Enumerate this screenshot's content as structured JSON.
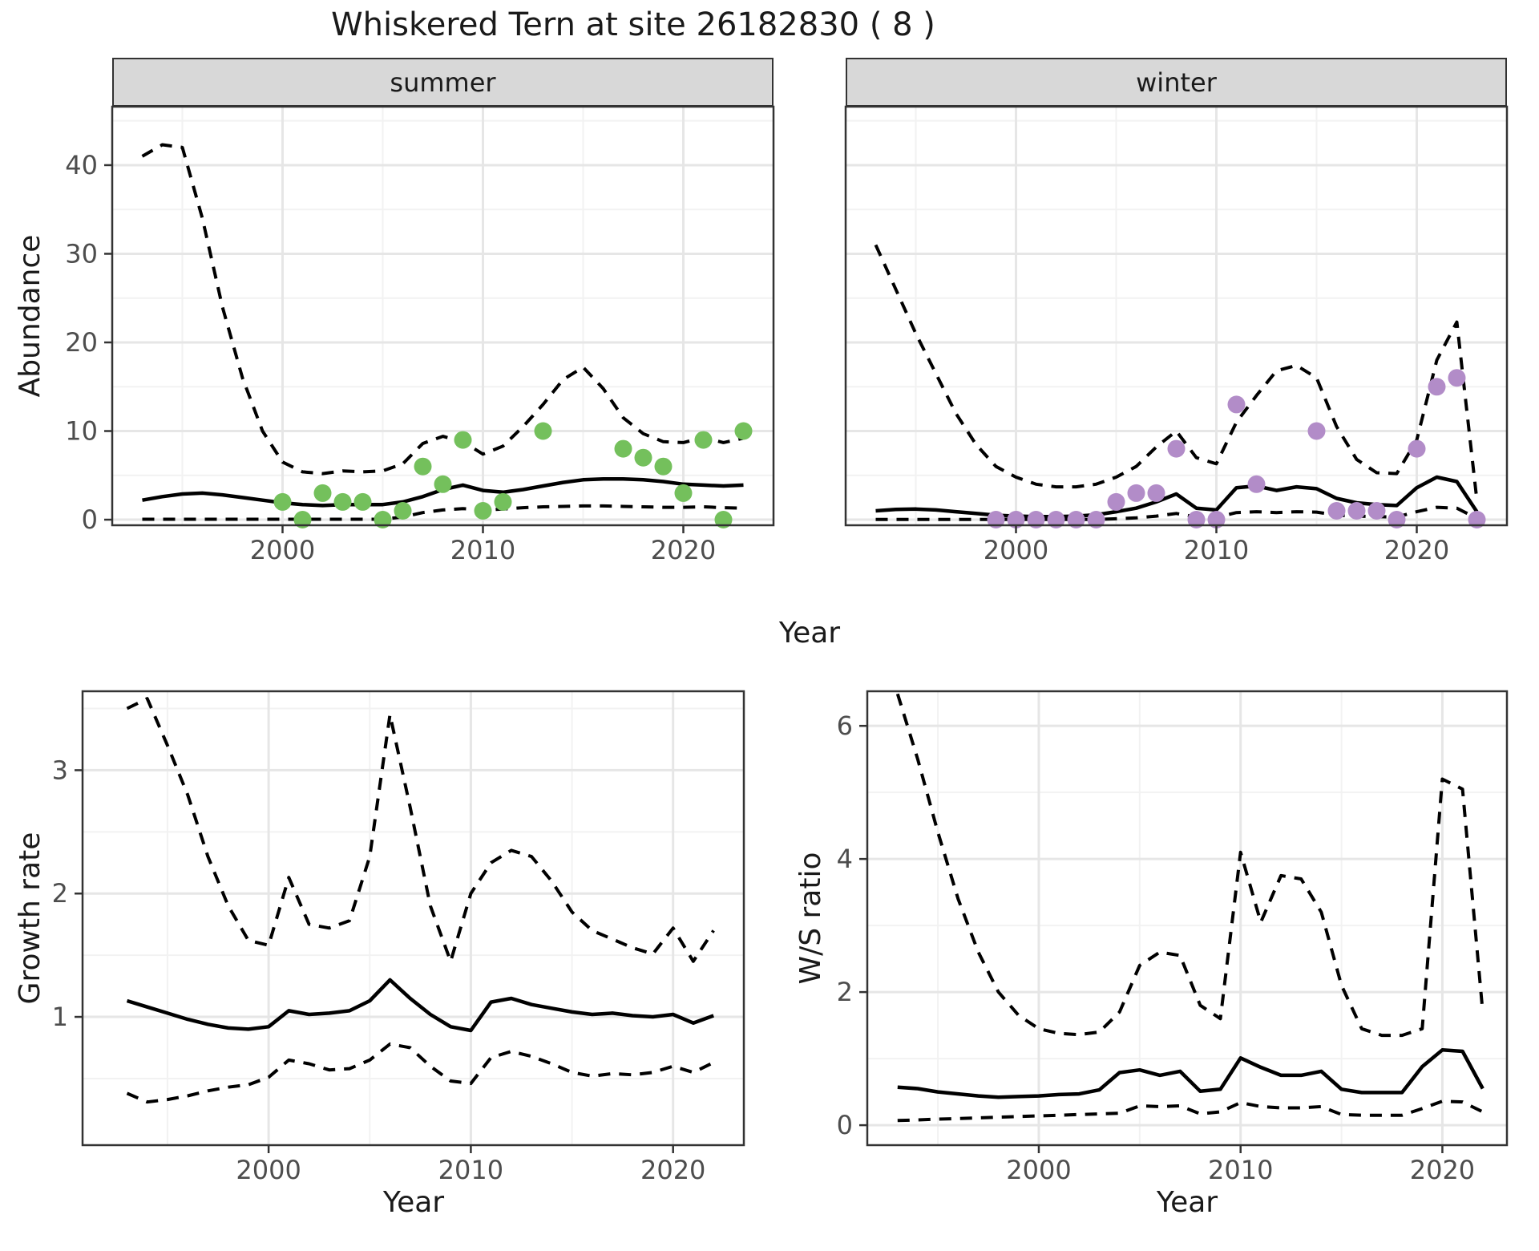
{
  "title": "Whiskered Tern at site 26182830 ( 8 )",
  "axis_titles": {
    "abundance": "Abundance",
    "year": "Year",
    "growth": "Growth rate",
    "ws": "W/S ratio"
  },
  "colors": {
    "summer_point": "#74c05c",
    "winter_point": "#b28cc8",
    "line": "#000000",
    "grid_major": "#e6e6e6",
    "grid_minor": "#f2f2f2",
    "panel_border": "#333333",
    "strip_bg": "#d8d8d8",
    "tick_mark": "#333333",
    "tick_text": "#4d4d4d",
    "text": "#1a1a1a"
  },
  "chart_data": [
    {
      "id": "abundance-summer",
      "type": "line",
      "facet_label": "summer",
      "ylabel": "Abundance",
      "xlabel": "Year",
      "grid": true,
      "legend": "none",
      "xlim": [
        1991.5,
        2024.5
      ],
      "ylim": [
        -0.63,
        46.6
      ],
      "xticks": [
        2000,
        2010,
        2020
      ],
      "xticks_minor": [
        1995,
        2005,
        2015
      ],
      "yticks": [
        0,
        10,
        20,
        30,
        40
      ],
      "yticks_minor": [
        5,
        15,
        25,
        35,
        45
      ],
      "show_ylabels": true,
      "x": [
        1993,
        1994,
        1995,
        1996,
        1997,
        1998,
        1999,
        2000,
        2001,
        2002,
        2003,
        2004,
        2005,
        2006,
        2007,
        2008,
        2009,
        2010,
        2011,
        2012,
        2013,
        2014,
        2015,
        2016,
        2017,
        2018,
        2019,
        2020,
        2021,
        2022,
        2023
      ],
      "series": [
        {
          "name": "fit",
          "style": "solid",
          "values": [
            2.2,
            2.6,
            2.9,
            3.0,
            2.8,
            2.5,
            2.2,
            1.9,
            1.7,
            1.6,
            1.7,
            1.7,
            1.7,
            2.0,
            2.6,
            3.4,
            3.9,
            3.3,
            3.1,
            3.4,
            3.8,
            4.2,
            4.5,
            4.6,
            4.6,
            4.5,
            4.3,
            4.0,
            3.9,
            3.8,
            3.9
          ]
        },
        {
          "name": "upper_ci",
          "style": "dashed",
          "values": [
            41,
            42.3,
            42,
            34,
            24,
            16,
            10,
            6.5,
            5.4,
            5.2,
            5.5,
            5.4,
            5.5,
            6.3,
            8.6,
            9.4,
            8.8,
            7.4,
            8.3,
            10.5,
            13,
            15.8,
            17.2,
            14.8,
            11.5,
            9.7,
            8.8,
            8.7,
            9.3,
            8.7,
            9.2
          ]
        },
        {
          "name": "lower_ci",
          "style": "dashed",
          "values": [
            0.05,
            0.05,
            0.05,
            0.05,
            0.05,
            0.05,
            0.05,
            0.05,
            0.05,
            0.05,
            0.05,
            0.05,
            0.05,
            0.3,
            0.8,
            1.1,
            1.25,
            1.1,
            1.2,
            1.35,
            1.45,
            1.5,
            1.55,
            1.55,
            1.5,
            1.45,
            1.4,
            1.4,
            1.45,
            1.35,
            1.3
          ]
        }
      ],
      "points": {
        "color_key": "summer_point",
        "data": [
          [
            2000,
            2
          ],
          [
            2001,
            0
          ],
          [
            2002,
            3
          ],
          [
            2003,
            2
          ],
          [
            2004,
            2
          ],
          [
            2005,
            0
          ],
          [
            2006,
            1
          ],
          [
            2007,
            6
          ],
          [
            2008,
            4
          ],
          [
            2009,
            9
          ],
          [
            2010,
            1
          ],
          [
            2011,
            2
          ],
          [
            2013,
            10
          ],
          [
            2017,
            8
          ],
          [
            2018,
            7
          ],
          [
            2019,
            6
          ],
          [
            2020,
            3
          ],
          [
            2021,
            9
          ],
          [
            2022,
            0
          ],
          [
            2023,
            10
          ]
        ]
      }
    },
    {
      "id": "abundance-winter",
      "type": "line",
      "facet_label": "winter",
      "ylabel": "Abundance",
      "xlabel": "Year",
      "grid": true,
      "legend": "none",
      "xlim": [
        1991.5,
        2024.5
      ],
      "ylim": [
        -0.63,
        46.6
      ],
      "xticks": [
        2000,
        2010,
        2020
      ],
      "xticks_minor": [
        1995,
        2005,
        2015
      ],
      "yticks": [
        0,
        10,
        20,
        30,
        40
      ],
      "yticks_minor": [
        5,
        15,
        25,
        35,
        45
      ],
      "show_ylabels": false,
      "x": [
        1993,
        1994,
        1995,
        1996,
        1997,
        1998,
        1999,
        2000,
        2001,
        2002,
        2003,
        2004,
        2005,
        2006,
        2007,
        2008,
        2009,
        2010,
        2011,
        2012,
        2013,
        2014,
        2015,
        2016,
        2017,
        2018,
        2019,
        2020,
        2021,
        2022,
        2023
      ],
      "series": [
        {
          "name": "fit",
          "style": "solid",
          "values": [
            1.0,
            1.15,
            1.2,
            1.1,
            0.9,
            0.7,
            0.5,
            0.4,
            0.35,
            0.35,
            0.4,
            0.55,
            0.9,
            1.3,
            2.0,
            2.9,
            1.3,
            1.1,
            3.6,
            3.8,
            3.3,
            3.7,
            3.5,
            2.4,
            1.9,
            1.7,
            1.6,
            3.6,
            4.8,
            4.3,
            0.9
          ]
        },
        {
          "name": "upper_ci",
          "style": "dashed",
          "values": [
            31,
            26,
            21,
            16.5,
            12,
            8.5,
            6,
            4.8,
            4,
            3.7,
            3.7,
            4,
            4.8,
            6,
            8.2,
            10,
            7,
            6.3,
            11,
            14,
            16.8,
            17.4,
            16,
            10.5,
            6.8,
            5.3,
            5.2,
            9,
            18,
            22.3,
            2.2
          ]
        },
        {
          "name": "lower_ci",
          "style": "dashed",
          "values": [
            0.02,
            0.02,
            0.02,
            0.02,
            0.02,
            0.02,
            0.02,
            0.02,
            0.02,
            0.02,
            0.02,
            0.02,
            0.1,
            0.2,
            0.4,
            0.7,
            0.3,
            0.25,
            0.8,
            0.9,
            0.8,
            0.9,
            0.85,
            0.5,
            0.4,
            0.35,
            0.3,
            0.9,
            1.4,
            1.3,
            0.15
          ]
        }
      ],
      "points": {
        "color_key": "winter_point",
        "data": [
          [
            1999,
            0
          ],
          [
            2000,
            0
          ],
          [
            2001,
            0
          ],
          [
            2002,
            0
          ],
          [
            2003,
            0
          ],
          [
            2004,
            0
          ],
          [
            2005,
            2
          ],
          [
            2006,
            3
          ],
          [
            2007,
            3
          ],
          [
            2008,
            8
          ],
          [
            2009,
            0
          ],
          [
            2010,
            0
          ],
          [
            2011,
            13
          ],
          [
            2012,
            4
          ],
          [
            2015,
            10
          ],
          [
            2016,
            1
          ],
          [
            2017,
            1
          ],
          [
            2018,
            1
          ],
          [
            2019,
            0
          ],
          [
            2020,
            8
          ],
          [
            2021,
            15
          ],
          [
            2022,
            16
          ],
          [
            2023,
            0
          ]
        ]
      }
    },
    {
      "id": "growth-rate",
      "type": "line",
      "facet_label": "",
      "ylabel": "Growth rate",
      "xlabel": "Year",
      "grid": true,
      "legend": "none",
      "xlim": [
        1990.8,
        2023.5
      ],
      "ylim": [
        -0.04,
        3.64
      ],
      "xticks": [
        2000,
        2010,
        2020
      ],
      "xticks_minor": [
        1995,
        2005,
        2015
      ],
      "yticks": [
        1,
        2,
        3
      ],
      "yticks_minor": [
        0.5,
        1.5,
        2.5,
        3.5
      ],
      "show_ylabels": true,
      "x": [
        1993,
        1994,
        1995,
        1996,
        1997,
        1998,
        1999,
        2000,
        2001,
        2002,
        2003,
        2004,
        2005,
        2006,
        2007,
        2008,
        2009,
        2010,
        2011,
        2012,
        2013,
        2014,
        2015,
        2016,
        2017,
        2018,
        2019,
        2020,
        2021,
        2022
      ],
      "series": [
        {
          "name": "fit",
          "style": "solid",
          "values": [
            1.13,
            1.08,
            1.03,
            0.98,
            0.94,
            0.91,
            0.9,
            0.92,
            1.05,
            1.02,
            1.03,
            1.05,
            1.13,
            1.3,
            1.15,
            1.02,
            0.92,
            0.89,
            1.12,
            1.15,
            1.1,
            1.07,
            1.04,
            1.02,
            1.03,
            1.01,
            1.0,
            1.02,
            0.95,
            1.01
          ]
        },
        {
          "name": "upper_ci",
          "style": "dashed",
          "values": [
            3.5,
            3.58,
            3.2,
            2.8,
            2.3,
            1.9,
            1.62,
            1.58,
            2.13,
            1.75,
            1.72,
            1.78,
            2.3,
            3.45,
            2.7,
            1.9,
            1.45,
            2.0,
            2.25,
            2.35,
            2.3,
            2.1,
            1.85,
            1.7,
            1.63,
            1.56,
            1.51,
            1.72,
            1.45,
            1.7
          ]
        },
        {
          "name": "lower_ci",
          "style": "dashed",
          "values": [
            0.38,
            0.31,
            0.33,
            0.36,
            0.4,
            0.43,
            0.45,
            0.51,
            0.65,
            0.62,
            0.57,
            0.58,
            0.65,
            0.78,
            0.75,
            0.6,
            0.48,
            0.46,
            0.67,
            0.72,
            0.68,
            0.62,
            0.55,
            0.52,
            0.54,
            0.53,
            0.55,
            0.6,
            0.55,
            0.63
          ]
        }
      ],
      "points": null
    },
    {
      "id": "ws-ratio",
      "type": "line",
      "facet_label": "",
      "ylabel": "W/S ratio",
      "xlabel": "Year",
      "grid": true,
      "legend": "none",
      "xlim": [
        1991.5,
        2023.2
      ],
      "ylim": [
        -0.3,
        6.52
      ],
      "xticks": [
        2000,
        2010,
        2020
      ],
      "xticks_minor": [
        1995,
        2005,
        2015
      ],
      "yticks": [
        0,
        2,
        4,
        6
      ],
      "yticks_minor": [
        1,
        3,
        5
      ],
      "show_ylabels": true,
      "x": [
        1993,
        1994,
        1995,
        1996,
        1997,
        1998,
        1999,
        2000,
        2001,
        2002,
        2003,
        2004,
        2005,
        2006,
        2007,
        2008,
        2009,
        2010,
        2011,
        2012,
        2013,
        2014,
        2015,
        2016,
        2017,
        2018,
        2019,
        2020,
        2021,
        2022
      ],
      "series": [
        {
          "name": "fit",
          "style": "solid",
          "values": [
            0.57,
            0.55,
            0.5,
            0.47,
            0.44,
            0.42,
            0.43,
            0.44,
            0.46,
            0.47,
            0.53,
            0.79,
            0.83,
            0.75,
            0.81,
            0.51,
            0.54,
            1.01,
            0.87,
            0.75,
            0.75,
            0.81,
            0.54,
            0.49,
            0.49,
            0.49,
            0.88,
            1.13,
            1.11,
            0.55
          ]
        },
        {
          "name": "upper_ci",
          "style": "dashed",
          "values": [
            6.48,
            5.5,
            4.4,
            3.4,
            2.6,
            2.0,
            1.65,
            1.45,
            1.38,
            1.36,
            1.4,
            1.7,
            2.4,
            2.6,
            2.55,
            1.8,
            1.6,
            4.1,
            3.05,
            3.75,
            3.7,
            3.2,
            2.1,
            1.45,
            1.35,
            1.35,
            1.45,
            5.2,
            5.05,
            1.7
          ]
        },
        {
          "name": "lower_ci",
          "style": "dashed",
          "values": [
            0.07,
            0.08,
            0.09,
            0.1,
            0.11,
            0.12,
            0.13,
            0.14,
            0.15,
            0.16,
            0.17,
            0.18,
            0.29,
            0.28,
            0.29,
            0.17,
            0.2,
            0.34,
            0.28,
            0.26,
            0.26,
            0.28,
            0.16,
            0.15,
            0.15,
            0.15,
            0.25,
            0.36,
            0.35,
            0.2
          ]
        }
      ],
      "points": null
    }
  ]
}
